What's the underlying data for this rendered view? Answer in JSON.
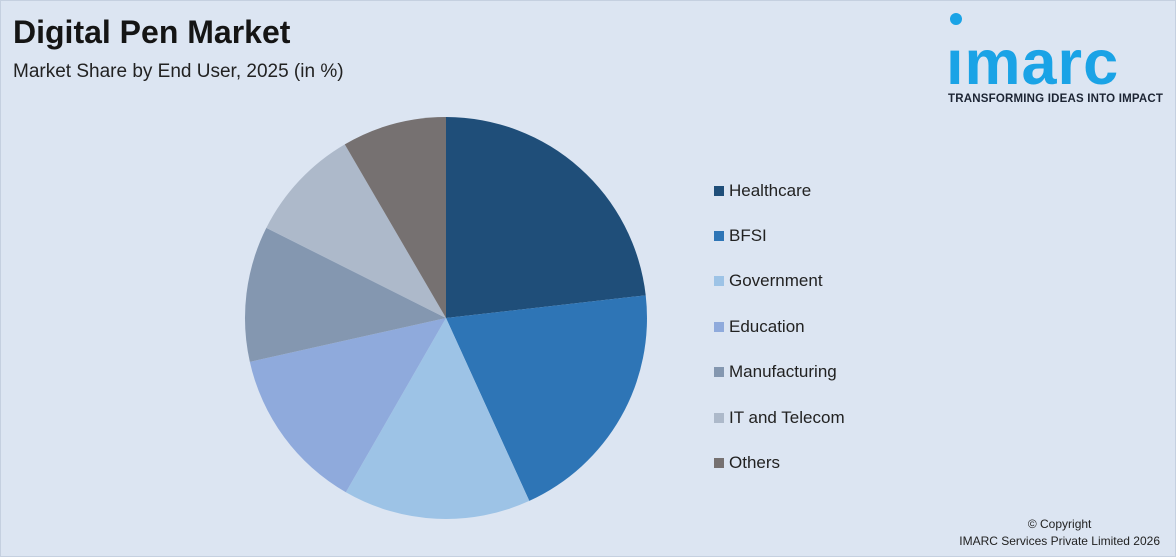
{
  "title": "Digital Pen Market",
  "subtitle": "Market Share by End User, 2025 (in %)",
  "logo": {
    "word": "ımarc",
    "tagline": "TRANSFORMING IDEAS INTO IMPACT",
    "color": "#1aa3e6"
  },
  "copyright": {
    "line1": "© Copyright",
    "line2": "IMARC Services Private Limited 2026"
  },
  "chart_data": {
    "type": "pie",
    "title": "Digital Pen Market",
    "subtitle": "Market Share by End User, 2025 (in %)",
    "legend_position": "right",
    "start_angle": "12 o'clock",
    "direction": "clockwise",
    "categories": [
      "Healthcare",
      "BFSI",
      "Government",
      "Education",
      "Manufacturing",
      "IT and Telecom",
      "Others"
    ],
    "values": [
      23.2,
      20.0,
      15.1,
      13.2,
      10.9,
      9.2,
      8.4
    ],
    "colors": [
      "#1f4e79",
      "#2e75b6",
      "#9dc3e6",
      "#8faadc",
      "#8497b0",
      "#adb9ca",
      "#767171"
    ]
  }
}
